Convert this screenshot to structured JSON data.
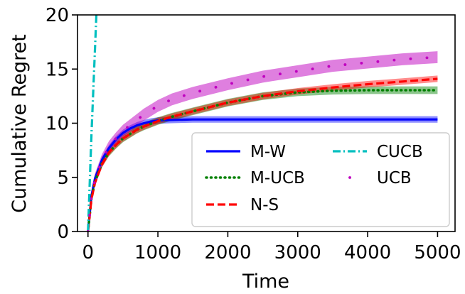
{
  "chart_data": {
    "type": "line",
    "title": "",
    "xlabel": "Time",
    "ylabel": "Cumulative Regret",
    "xlim": [
      -150,
      5250
    ],
    "ylim": [
      0,
      20
    ],
    "xticks": [
      0,
      1000,
      2000,
      3000,
      4000,
      5000
    ],
    "yticks": [
      0,
      5,
      10,
      15,
      20
    ],
    "grid": false,
    "legend_placement": "lower-right",
    "series": [
      {
        "name": "M-W",
        "color": "#0000ff",
        "style": "solid",
        "band": 0.3,
        "x": [
          0,
          50,
          100,
          200,
          300,
          400,
          500,
          600,
          700,
          800,
          900,
          1000,
          1200,
          1500,
          2000,
          3000,
          4000,
          5000
        ],
        "y": [
          0,
          3.3,
          4.9,
          6.6,
          7.7,
          8.5,
          9.1,
          9.5,
          9.8,
          10.0,
          10.15,
          10.25,
          10.3,
          10.35,
          10.35,
          10.35,
          10.35,
          10.35
        ]
      },
      {
        "name": "M-UCB",
        "color": "#008000",
        "style": "dotted",
        "band": 0.35,
        "x": [
          0,
          50,
          100,
          200,
          300,
          400,
          500,
          600,
          700,
          800,
          900,
          1000,
          1200,
          1500,
          2000,
          2500,
          3000,
          3500,
          4000,
          4500,
          5000
        ],
        "y": [
          0,
          3.1,
          4.6,
          6.3,
          7.3,
          8.0,
          8.6,
          9.0,
          9.4,
          9.7,
          9.95,
          10.2,
          10.6,
          11.1,
          11.9,
          12.5,
          12.85,
          13.0,
          13.05,
          13.05,
          13.05
        ]
      },
      {
        "name": "N-S",
        "color": "#ff0000",
        "style": "dashed",
        "band": 0.3,
        "x": [
          0,
          50,
          100,
          200,
          300,
          400,
          500,
          600,
          700,
          800,
          900,
          1000,
          1200,
          1500,
          2000,
          2500,
          3000,
          3500,
          4000,
          4500,
          5000
        ],
        "y": [
          0,
          3.0,
          4.5,
          6.2,
          7.3,
          8.0,
          8.6,
          9.0,
          9.4,
          9.7,
          9.95,
          10.2,
          10.6,
          11.1,
          11.9,
          12.5,
          12.95,
          13.3,
          13.6,
          13.85,
          14.1
        ]
      },
      {
        "name": "CUCB",
        "color": "#00bfbf",
        "style": "dashdot",
        "band": 0,
        "x": [
          0,
          50,
          120
        ],
        "y": [
          0,
          9.0,
          20.0
        ]
      },
      {
        "name": "UCB",
        "color": "#bf00bf",
        "style": "sparse-dots",
        "band": 0.55,
        "x": [
          0,
          50,
          100,
          200,
          300,
          400,
          500,
          600,
          700,
          800,
          900,
          1000,
          1200,
          1500,
          2000,
          2500,
          3000,
          3500,
          4000,
          4500,
          5000
        ],
        "y": [
          0,
          3.2,
          4.8,
          6.6,
          7.8,
          8.6,
          9.3,
          9.8,
          10.3,
          10.8,
          11.2,
          11.6,
          12.2,
          12.8,
          13.6,
          14.3,
          14.8,
          15.3,
          15.6,
          15.9,
          16.1
        ]
      }
    ],
    "legend_entries": [
      "M-W",
      "CUCB",
      "M-UCB",
      "UCB",
      "N-S"
    ]
  }
}
